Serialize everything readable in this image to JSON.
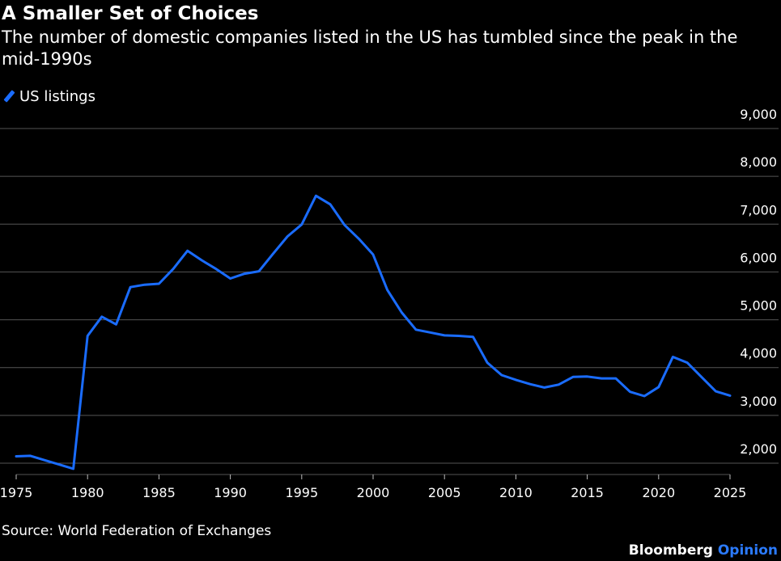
{
  "header": {
    "title": "A Smaller Set of Choices",
    "subtitle": "The number of domestic companies listed in the US has tumbled since the peak in the mid-1990s"
  },
  "footer": {
    "source": "Source: World Federation of Exchanges",
    "brand_name": "Bloomberg",
    "brand_accent": "Opinion"
  },
  "colors": {
    "background": "#000000",
    "series": "#1a6cff",
    "grid": "#555555",
    "text": "#ffffff",
    "brand_accent": "#2b7bff"
  },
  "chart_data": {
    "type": "line",
    "legend": "top-left",
    "grid": true,
    "y_axis_side": "right",
    "xlim": [
      1975,
      2025
    ],
    "ylim": [
      2000,
      9000
    ],
    "x_ticks": [
      1975,
      1980,
      1985,
      1990,
      1995,
      2000,
      2005,
      2010,
      2015,
      2020,
      2025
    ],
    "y_ticks": [
      2000,
      3000,
      4000,
      5000,
      6000,
      7000,
      8000,
      9000
    ],
    "y_tick_labels": [
      "2,000",
      "3,000",
      "4,000",
      "5,000",
      "6,000",
      "7,000",
      "8,000",
      "9,000"
    ],
    "series": [
      {
        "name": "US listings",
        "x": [
          1975,
          1976,
          1977,
          1978,
          1979,
          1980,
          1981,
          1982,
          1983,
          1984,
          1985,
          1986,
          1987,
          1988,
          1989,
          1990,
          1991,
          1992,
          1993,
          1994,
          1995,
          1996,
          1997,
          1998,
          1999,
          2000,
          2001,
          2002,
          2003,
          2004,
          2005,
          2006,
          2007,
          2008,
          2009,
          2010,
          2011,
          2012,
          2013,
          2014,
          2015,
          2016,
          2017,
          2018,
          2019,
          2020,
          2021,
          2022,
          2023,
          2024,
          2025
        ],
        "values": [
          2380,
          2390,
          2300,
          2210,
          2120,
          4900,
          5300,
          5140,
          5920,
          5970,
          5990,
          6300,
          6680,
          6480,
          6300,
          6100,
          6200,
          6250,
          6620,
          6980,
          7230,
          7830,
          7650,
          7220,
          6930,
          6600,
          5860,
          5390,
          5030,
          4970,
          4910,
          4900,
          4880,
          4340,
          4080,
          3980,
          3890,
          3820,
          3880,
          4040,
          4050,
          4010,
          4010,
          3730,
          3640,
          3830,
          4460,
          4340,
          4040,
          3740,
          3650
        ]
      }
    ]
  }
}
